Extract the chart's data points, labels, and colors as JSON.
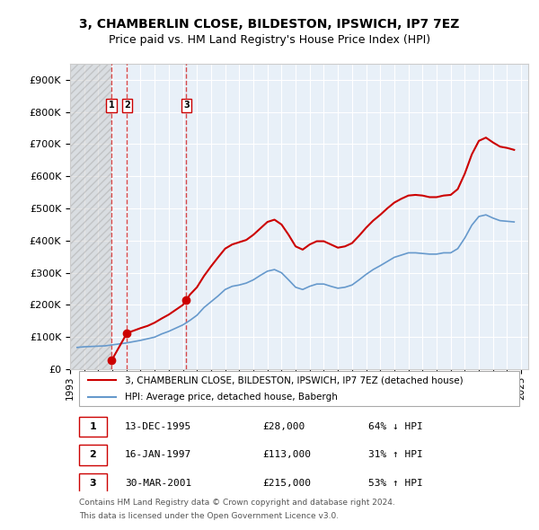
{
  "title1": "3, CHAMBERLIN CLOSE, BILDESTON, IPSWICH, IP7 7EZ",
  "title2": "Price paid vs. HM Land Registry's House Price Index (HPI)",
  "legend_line1": "3, CHAMBERLIN CLOSE, BILDESTON, IPSWICH, IP7 7EZ (detached house)",
  "legend_line2": "HPI: Average price, detached house, Babergh",
  "ylabel": "",
  "yticks": [
    0,
    100000,
    200000,
    300000,
    400000,
    500000,
    600000,
    700000,
    800000,
    900000
  ],
  "ytick_labels": [
    "£0",
    "£100K",
    "£200K",
    "£300K",
    "£400K",
    "£500K",
    "£600K",
    "£700K",
    "£800K",
    "£900K"
  ],
  "ylim": [
    0,
    950000
  ],
  "xlim_start": 1993.0,
  "xlim_end": 2025.5,
  "transactions": [
    {
      "num": 1,
      "date": "13-DEC-1995",
      "date_num": 1995.95,
      "price": 28000,
      "pct": "64%",
      "dir": "↓"
    },
    {
      "num": 2,
      "date": "16-JAN-1997",
      "date_num": 1997.04,
      "price": 113000,
      "pct": "31%",
      "dir": "↑"
    },
    {
      "num": 3,
      "date": "30-MAR-2001",
      "date_num": 2001.25,
      "price": 215000,
      "pct": "53%",
      "dir": "↑"
    }
  ],
  "hpi_color": "#6699cc",
  "price_color": "#cc0000",
  "hatch_color": "#cccccc",
  "background_color": "#ddeeff",
  "plot_bg": "#e8f0f8",
  "grid_color": "#ffffff",
  "hpi_data": {
    "years": [
      1993.5,
      1994.0,
      1994.5,
      1995.0,
      1995.5,
      1996.0,
      1996.5,
      1997.0,
      1997.5,
      1998.0,
      1998.5,
      1999.0,
      1999.5,
      2000.0,
      2000.5,
      2001.0,
      2001.5,
      2002.0,
      2002.5,
      2003.0,
      2003.5,
      2004.0,
      2004.5,
      2005.0,
      2005.5,
      2006.0,
      2006.5,
      2007.0,
      2007.5,
      2008.0,
      2008.5,
      2009.0,
      2009.5,
      2010.0,
      2010.5,
      2011.0,
      2011.5,
      2012.0,
      2012.5,
      2013.0,
      2013.5,
      2014.0,
      2014.5,
      2015.0,
      2015.5,
      2016.0,
      2016.5,
      2017.0,
      2017.5,
      2018.0,
      2018.5,
      2019.0,
      2019.5,
      2020.0,
      2020.5,
      2021.0,
      2021.5,
      2022.0,
      2022.5,
      2023.0,
      2023.5,
      2024.0,
      2024.5
    ],
    "values": [
      68000,
      70000,
      71000,
      72000,
      73000,
      76000,
      79000,
      82000,
      86000,
      90000,
      95000,
      100000,
      110000,
      118000,
      128000,
      138000,
      152000,
      168000,
      192000,
      210000,
      228000,
      248000,
      258000,
      262000,
      268000,
      278000,
      292000,
      305000,
      310000,
      300000,
      278000,
      255000,
      248000,
      258000,
      265000,
      265000,
      258000,
      252000,
      255000,
      262000,
      278000,
      295000,
      310000,
      322000,
      335000,
      348000,
      355000,
      362000,
      362000,
      360000,
      358000,
      358000,
      362000,
      362000,
      375000,
      408000,
      448000,
      475000,
      480000,
      470000,
      462000,
      460000,
      458000
    ]
  },
  "price_data": {
    "years": [
      1995.95,
      1995.95,
      1997.04,
      1997.04,
      1997.5,
      1998.0,
      1998.5,
      1999.0,
      1999.5,
      2000.0,
      2000.5,
      2001.0,
      2001.25,
      2001.25,
      2001.5,
      2002.0,
      2002.5,
      2003.0,
      2003.5,
      2004.0,
      2004.5,
      2005.0,
      2005.5,
      2006.0,
      2006.5,
      2007.0,
      2007.5,
      2008.0,
      2008.5,
      2009.0,
      2009.5,
      2010.0,
      2010.5,
      2011.0,
      2011.5,
      2012.0,
      2012.5,
      2013.0,
      2013.5,
      2014.0,
      2014.5,
      2015.0,
      2015.5,
      2016.0,
      2016.5,
      2017.0,
      2017.5,
      2018.0,
      2018.5,
      2019.0,
      2019.5,
      2020.0,
      2020.5,
      2021.0,
      2021.5,
      2022.0,
      2022.5,
      2023.0,
      2023.5,
      2024.0,
      2024.5
    ],
    "values": [
      28000,
      28000,
      113000,
      113000,
      120000,
      128000,
      135000,
      145000,
      158000,
      170000,
      185000,
      200000,
      215000,
      215000,
      232000,
      255000,
      290000,
      320000,
      348000,
      375000,
      388000,
      395000,
      402000,
      418000,
      438000,
      458000,
      465000,
      450000,
      418000,
      382000,
      372000,
      388000,
      398000,
      398000,
      388000,
      378000,
      382000,
      392000,
      415000,
      440000,
      462000,
      480000,
      500000,
      518000,
      530000,
      540000,
      542000,
      540000,
      535000,
      535000,
      540000,
      542000,
      560000,
      608000,
      668000,
      710000,
      720000,
      705000,
      692000,
      688000,
      682000
    ]
  },
  "table_rows": [
    {
      "num": 1,
      "date": "13-DEC-1995",
      "price": "£28,000",
      "pct": "64% ↓ HPI"
    },
    {
      "num": 2,
      "date": "16-JAN-1997",
      "price": "£113,000",
      "pct": "31% ↑ HPI"
    },
    {
      "num": 3,
      "date": "30-MAR-2001",
      "price": "£215,000",
      "pct": "53% ↑ HPI"
    }
  ],
  "footnote1": "Contains HM Land Registry data © Crown copyright and database right 2024.",
  "footnote2": "This data is licensed under the Open Government Licence v3.0."
}
